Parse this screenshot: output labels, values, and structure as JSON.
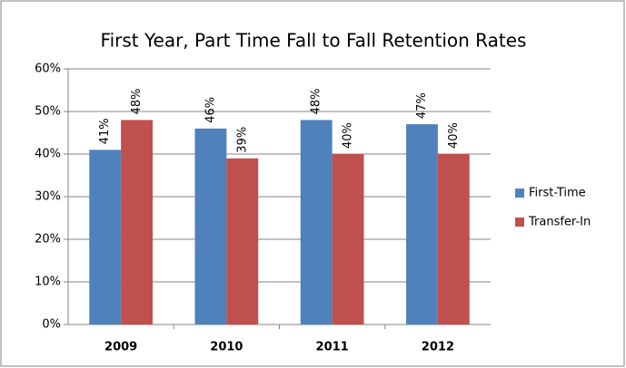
{
  "chart_data": {
    "type": "bar",
    "title": "First Year, Part Time Fall to Fall Retention Rates",
    "categories": [
      "2009",
      "2010",
      "2011",
      "2012"
    ],
    "series": [
      {
        "name": "First-Time",
        "color": "#4f81bd",
        "values": [
          41,
          46,
          48,
          47
        ],
        "value_labels": [
          "41%",
          "46%",
          "48%",
          "47%"
        ]
      },
      {
        "name": "Transfer-In",
        "color": "#c0504d",
        "values": [
          48,
          39,
          40,
          40
        ],
        "value_labels": [
          "48%",
          "39%",
          "40%",
          "40%"
        ]
      }
    ],
    "ylim": [
      0,
      60
    ],
    "yticks": [
      {
        "value": 0,
        "label": "0%"
      },
      {
        "value": 10,
        "label": "10%"
      },
      {
        "value": 20,
        "label": "20%"
      },
      {
        "value": 30,
        "label": "30%"
      },
      {
        "value": 40,
        "label": "40%"
      },
      {
        "value": 50,
        "label": "50%"
      },
      {
        "value": 60,
        "label": "60%"
      }
    ],
    "grid": true,
    "legend": "right"
  }
}
